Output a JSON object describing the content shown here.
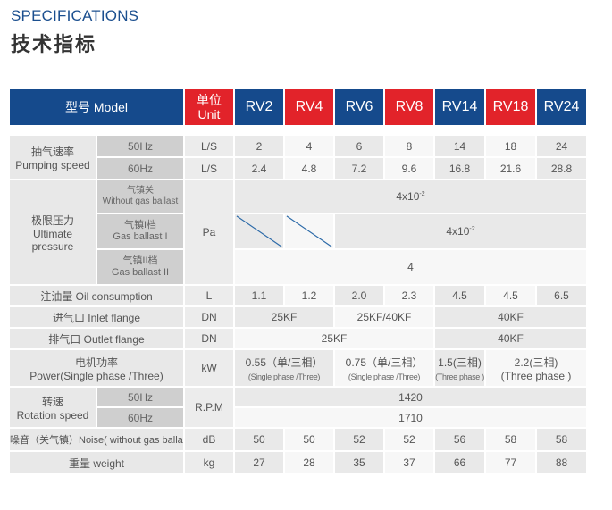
{
  "title_en": "SPECIFICATIONS",
  "title_cn": "技术指标",
  "header": {
    "model_label": "型号  Model",
    "unit_cn": "单位",
    "unit_en": "Unit",
    "models": [
      "RV2",
      "RV4",
      "RV6",
      "RV8",
      "RV14",
      "RV18",
      "RV24"
    ]
  },
  "pumping": {
    "label_cn": "抽气速率",
    "label_en": "Pumping speed",
    "r50": {
      "hz": "50Hz",
      "unit": "L/S",
      "values": [
        "2",
        "4",
        "6",
        "8",
        "14",
        "18",
        "24"
      ]
    },
    "r60": {
      "hz": "60Hz",
      "unit": "L/S",
      "values": [
        "2.4",
        "4.8",
        "7.2",
        "9.6",
        "16.8",
        "21.6",
        "28.8"
      ]
    }
  },
  "ultimate": {
    "label_cn": "极限压力",
    "label_en1": "Ultimate",
    "label_en2": "pressure",
    "unit": "Pa",
    "without": {
      "cn": "气镇关",
      "en": "Without gas ballast",
      "value": "4x10",
      "exp": "-2"
    },
    "ballast1": {
      "cn": "气镇I档",
      "en": "Gas ballast I",
      "value": "4x10",
      "exp": "-2"
    },
    "ballast2": {
      "cn": "气镇II档",
      "en": "Gas ballast II",
      "value": "4"
    }
  },
  "oil": {
    "label": "注油量 Oil consumption",
    "unit": "L",
    "values": [
      "1.1",
      "1.2",
      "2.0",
      "2.3",
      "4.5",
      "4.5",
      "6.5"
    ]
  },
  "inlet": {
    "label": "进气口 Inlet flange",
    "unit": "DN",
    "v1": "25KF",
    "v2": "25KF/40KF",
    "v3": "40KF"
  },
  "outlet": {
    "label": "排气口 Outlet flange",
    "unit": "DN",
    "v1": "25KF",
    "v2": "40KF"
  },
  "power": {
    "label_cn": "电机功率",
    "label_en": "Power(Single phase /Three)",
    "unit": "kW",
    "p1": {
      "main": "0.55（单/三相）",
      "sub": "(Single phase /Three)"
    },
    "p2": {
      "main": "0.75（单/三相）",
      "sub": "(Single phase /Three)"
    },
    "p3": {
      "main": "1.5(三相)",
      "sub": "(Three phase )"
    },
    "p4": {
      "main": "2.2(三相)",
      "sub": "(Three phase )"
    }
  },
  "rotation": {
    "label_cn": "转速",
    "label_en": "Rotation speed",
    "unit": "R.P.M",
    "r50": {
      "hz": "50Hz",
      "value": "1420"
    },
    "r60": {
      "hz": "60Hz",
      "value": "1710"
    }
  },
  "noise": {
    "label": "噪音（关气镇）Noise( without gas ballast)",
    "unit": "dB",
    "values": [
      "50",
      "50",
      "52",
      "52",
      "56",
      "58",
      "58"
    ]
  },
  "weight": {
    "label": "重量 weight",
    "unit": "kg",
    "values": [
      "27",
      "28",
      "35",
      "37",
      "66",
      "77",
      "88"
    ]
  }
}
